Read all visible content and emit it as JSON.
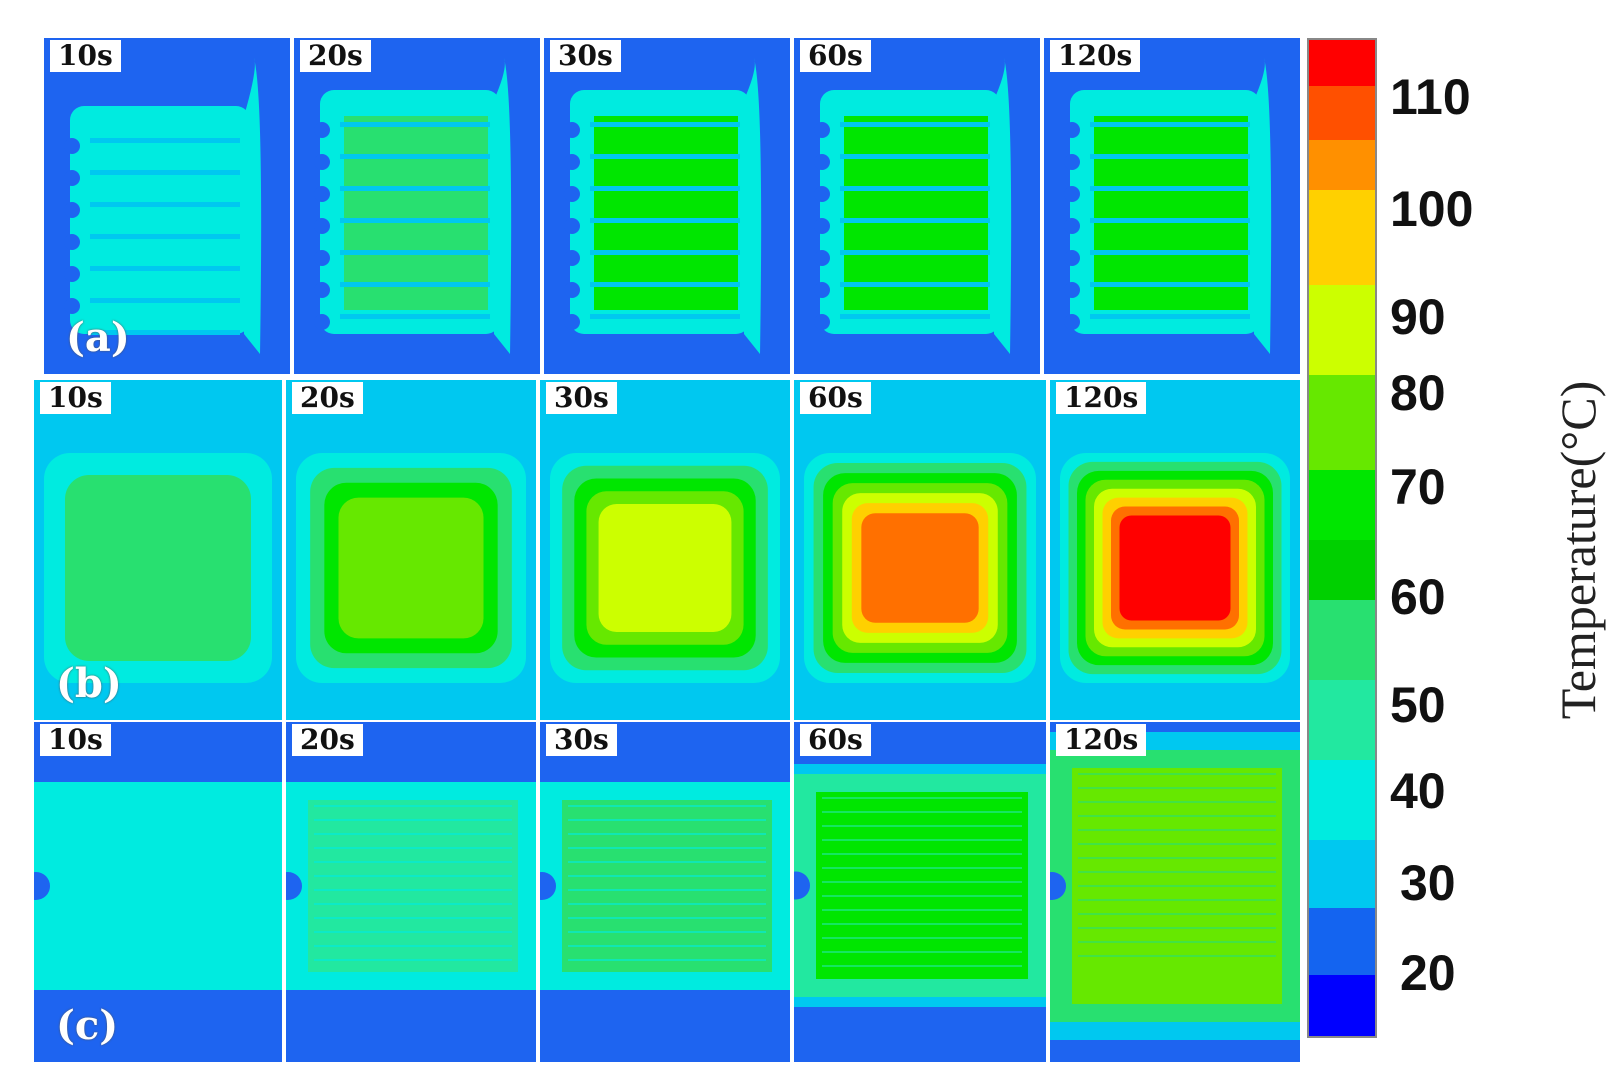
{
  "figure": {
    "rows": [
      {
        "label": "(a)",
        "times": [
          "10s",
          "20s",
          "30s",
          "60s",
          "120s"
        ]
      },
      {
        "label": "(b)",
        "times": [
          "10s",
          "20s",
          "30s",
          "60s",
          "120s"
        ]
      },
      {
        "label": "(c)",
        "times": [
          "10s",
          "20s",
          "30s",
          "60s",
          "120s"
        ]
      }
    ],
    "colorbar": {
      "title": "Temperature(°C)",
      "tick_labels": [
        "110",
        "100",
        "90",
        "80",
        "70",
        "60",
        "50",
        "40",
        "30",
        "20"
      ],
      "colors": [
        "#0000ff",
        "#0a50e8",
        "#1464f0",
        "#00c8f0",
        "#00ebe0",
        "#22e8a0",
        "#28e070",
        "#00ff00",
        "#00e600",
        "#66e800",
        "#ccff00",
        "#ffd000",
        "#ff9000",
        "#ff5000",
        "#ff0000"
      ]
    },
    "palette": {
      "background": "#1e64f0",
      "cyan": "#00c8f0",
      "aqua": "#00ebe0",
      "light_green": "#22e8a0",
      "green": "#00e600",
      "yellow_green": "#66e800",
      "yellow": "#ccff00",
      "amber": "#ffd000",
      "orange": "#ff7000",
      "red": "#ff0000"
    },
    "panel_levels": {
      "a": [
        {
          "outer": "#00ebe0",
          "inner": "#00ebe0",
          "channel": "#00c8f0"
        },
        {
          "outer": "#00ebe0",
          "inner": "#28e070",
          "channel": "#00c8f0"
        },
        {
          "outer": "#00ebe0",
          "inner": "#00e600",
          "channel": "#00c8f0"
        },
        {
          "outer": "#00ebe0",
          "inner": "#00e600",
          "channel": "#00c8f0"
        },
        {
          "outer": "#00ebe0",
          "inner": "#00e600",
          "channel": "#00c8f0"
        }
      ],
      "b": [
        {
          "rings": [
            "#00c8f0",
            "#00ebe0",
            "#28e070"
          ]
        },
        {
          "rings": [
            "#00c8f0",
            "#00ebe0",
            "#28e070",
            "#00e600",
            "#66e800"
          ]
        },
        {
          "rings": [
            "#00c8f0",
            "#00ebe0",
            "#28e070",
            "#00e600",
            "#66e800",
            "#ccff00"
          ]
        },
        {
          "rings": [
            "#00c8f0",
            "#00ebe0",
            "#28e070",
            "#00e600",
            "#66e800",
            "#ccff00",
            "#ffd000",
            "#ff7000"
          ]
        },
        {
          "rings": [
            "#00c8f0",
            "#00ebe0",
            "#28e070",
            "#00e600",
            "#66e800",
            "#ccff00",
            "#ffd000",
            "#ff7000",
            "#ff0000"
          ]
        }
      ],
      "c": [
        {
          "body": "#00ebe0",
          "core": "#00ebe0"
        },
        {
          "body": "#00ebe0",
          "core": "#22e8a0"
        },
        {
          "body": "#00ebe0",
          "core": "#28e070"
        },
        {
          "body": "#22e8a0",
          "core": "#00e600"
        },
        {
          "body": "#28e070",
          "core": "#66e800"
        }
      ]
    }
  }
}
